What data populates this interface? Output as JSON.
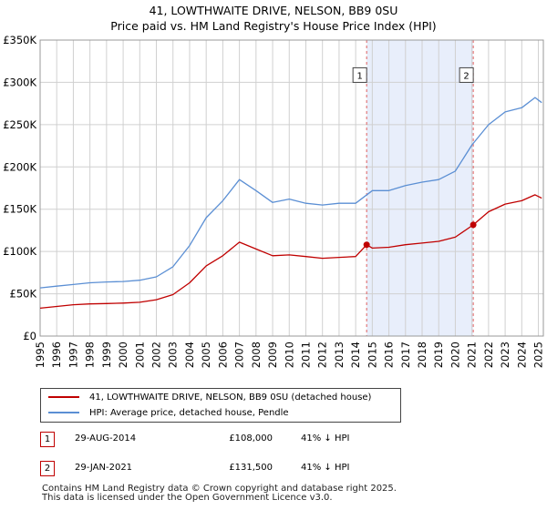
{
  "title": {
    "line1": "41, LOWTHWAITE DRIVE, NELSON, BB9 0SU",
    "line2": "Price paid vs. HM Land Registry's House Price Index (HPI)"
  },
  "legend": {
    "property_label": "41, LOWTHWAITE DRIVE, NELSON, BB9 0SU (detached house)",
    "hpi_label": "HPI: Average price, detached house, Pendle"
  },
  "sales": [
    {
      "num": "1",
      "date": "29-AUG-2014",
      "price": "£108,000",
      "hpi_diff": "41% ↓ HPI"
    },
    {
      "num": "2",
      "date": "29-JAN-2021",
      "price": "£131,500",
      "hpi_diff": "41% ↓ HPI"
    }
  ],
  "footer": {
    "line1": "Contains HM Land Registry data © Crown copyright and database right 2025.",
    "line2": "This data is licensed under the Open Government Licence v3.0."
  },
  "colors": {
    "property": "#c00000",
    "hpi": "#5b8fd4",
    "highlight": "#e8eefb",
    "grid": "#d0d0d0",
    "marker_line": "#e06060"
  },
  "chart_data": {
    "type": "line",
    "xlabel": "",
    "ylabel": "",
    "xlim": [
      1995,
      2025.3
    ],
    "ylim": [
      0,
      350000
    ],
    "x_ticks": [
      "1995",
      "1996",
      "1997",
      "1998",
      "1999",
      "2000",
      "2001",
      "2002",
      "2003",
      "2004",
      "2005",
      "2006",
      "2007",
      "2008",
      "2009",
      "2010",
      "2011",
      "2012",
      "2013",
      "2014",
      "2015",
      "2016",
      "2017",
      "2018",
      "2019",
      "2020",
      "2021",
      "2022",
      "2023",
      "2024",
      "2025"
    ],
    "y_ticks": [
      {
        "value": 0,
        "label": "£0"
      },
      {
        "value": 50000,
        "label": "£50K"
      },
      {
        "value": 100000,
        "label": "£100K"
      },
      {
        "value": 150000,
        "label": "£150K"
      },
      {
        "value": 200000,
        "label": "£200K"
      },
      {
        "value": 250000,
        "label": "£250K"
      },
      {
        "value": 300000,
        "label": "£300K"
      },
      {
        "value": 350000,
        "label": "£350K"
      }
    ],
    "highlight_range": [
      2014.66,
      2021.08
    ],
    "series": [
      {
        "name": "HPI: Average price, detached house, Pendle",
        "points": [
          [
            1995,
            57000
          ],
          [
            1996,
            59000
          ],
          [
            1997,
            61000
          ],
          [
            1998,
            63000
          ],
          [
            1999,
            64000
          ],
          [
            2000,
            64500
          ],
          [
            2001,
            66000
          ],
          [
            2002,
            70000
          ],
          [
            2003,
            82000
          ],
          [
            2004,
            107000
          ],
          [
            2005,
            140000
          ],
          [
            2006,
            160000
          ],
          [
            2007,
            185000
          ],
          [
            2008,
            172000
          ],
          [
            2009,
            158000
          ],
          [
            2010,
            162000
          ],
          [
            2011,
            157000
          ],
          [
            2012,
            155000
          ],
          [
            2013,
            157000
          ],
          [
            2014,
            157000
          ],
          [
            2015,
            172000
          ],
          [
            2016,
            172000
          ],
          [
            2017,
            178000
          ],
          [
            2018,
            182000
          ],
          [
            2019,
            185000
          ],
          [
            2020,
            195000
          ],
          [
            2021,
            226000
          ],
          [
            2022,
            250000
          ],
          [
            2023,
            265000
          ],
          [
            2024,
            270000
          ],
          [
            2024.8,
            282000
          ],
          [
            2025.2,
            276000
          ]
        ]
      },
      {
        "name": "41, LOWTHWAITE DRIVE, NELSON, BB9 0SU (detached house)",
        "points": [
          [
            1995,
            33000
          ],
          [
            1996,
            35000
          ],
          [
            1997,
            37000
          ],
          [
            1998,
            38000
          ],
          [
            1999,
            38500
          ],
          [
            2000,
            39000
          ],
          [
            2001,
            40000
          ],
          [
            2002,
            43000
          ],
          [
            2003,
            49000
          ],
          [
            2004,
            63000
          ],
          [
            2005,
            83000
          ],
          [
            2006,
            95000
          ],
          [
            2007,
            111000
          ],
          [
            2008,
            103000
          ],
          [
            2009,
            95000
          ],
          [
            2010,
            96000
          ],
          [
            2011,
            94000
          ],
          [
            2012,
            92000
          ],
          [
            2013,
            93000
          ],
          [
            2014,
            94000
          ],
          [
            2014.66,
            108000
          ],
          [
            2015,
            104000
          ],
          [
            2016,
            105000
          ],
          [
            2017,
            108000
          ],
          [
            2018,
            110000
          ],
          [
            2019,
            112000
          ],
          [
            2020,
            117000
          ],
          [
            2021.08,
            131500
          ],
          [
            2022,
            147000
          ],
          [
            2023,
            156000
          ],
          [
            2024,
            160000
          ],
          [
            2024.8,
            167000
          ],
          [
            2025.2,
            163000
          ]
        ]
      }
    ],
    "sales": [
      {
        "label": "1",
        "x": 2014.66,
        "y": 108000
      },
      {
        "label": "2",
        "x": 2021.08,
        "y": 131500
      }
    ]
  }
}
